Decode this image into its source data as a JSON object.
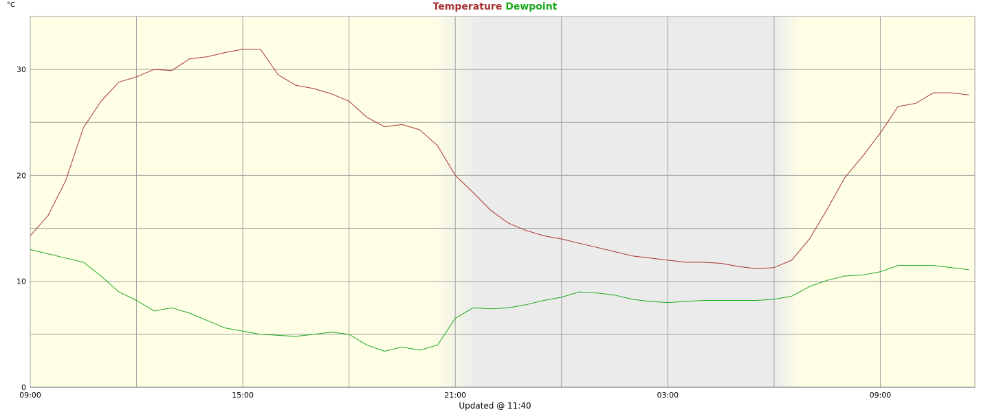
{
  "chart_data": {
    "type": "line",
    "title": "",
    "ylabel": "°C",
    "footer": "Updated @ 11:40",
    "ylim": [
      0,
      35
    ],
    "yticks": [
      0,
      10,
      20,
      30
    ],
    "x_range_hours": [
      0,
      26.67
    ],
    "x_tick_labels": [
      "09:00",
      "15:00",
      "21:00",
      "03:00",
      "09:00"
    ],
    "x_tick_hours": [
      0,
      6,
      12,
      18,
      24
    ],
    "grid": true,
    "legend": "top-center",
    "night_shading": {
      "start_hour": 11.3,
      "full_start_hour": 12.6,
      "full_end_hour": 21.0,
      "end_hour": 21.8
    },
    "colors": {
      "day": "#ffffe6",
      "night": "#ebebeb",
      "grid": "#a0a0a0",
      "temperature": "#a83232",
      "dewpoint": "#1ba81b"
    },
    "series": [
      {
        "name": "Temperature",
        "color": "#a83232",
        "x": [
          0,
          0.5,
          1.0,
          1.5,
          2.0,
          2.5,
          3.0,
          3.5,
          4.0,
          4.5,
          5.0,
          5.5,
          6.0,
          6.5,
          7.0,
          7.5,
          8.0,
          8.5,
          9.0,
          9.5,
          10.0,
          10.5,
          11.0,
          11.5,
          12.0,
          12.5,
          13.0,
          13.5,
          14.0,
          14.5,
          15.0,
          15.5,
          16.0,
          16.5,
          17.0,
          17.5,
          18.0,
          18.5,
          19.0,
          19.5,
          20.0,
          20.5,
          21.0,
          21.5,
          22.0,
          22.5,
          23.0,
          23.5,
          24.0,
          24.5,
          25.0,
          25.5,
          26.0,
          26.5
        ],
        "values": [
          14.3,
          16.2,
          19.5,
          24.5,
          27.0,
          28.8,
          29.3,
          30.0,
          29.9,
          31.0,
          31.2,
          31.6,
          31.9,
          31.9,
          29.5,
          28.5,
          28.2,
          27.7,
          27.0,
          25.5,
          24.6,
          24.8,
          24.3,
          22.8,
          20.0,
          18.4,
          16.7,
          15.5,
          14.8,
          14.3,
          14.0,
          13.6,
          13.2,
          12.8,
          12.4,
          12.2,
          12.0,
          11.8,
          11.8,
          11.7,
          11.4,
          11.2,
          11.3,
          12.0,
          14.0,
          16.8,
          19.8,
          21.8,
          24.0,
          26.5,
          26.8,
          27.8,
          27.8,
          27.6
        ]
      },
      {
        "name": "Dewpoint",
        "color": "#1ba81b",
        "x": [
          0,
          0.5,
          1.0,
          1.5,
          2.0,
          2.5,
          3.0,
          3.5,
          4.0,
          4.5,
          5.0,
          5.5,
          6.0,
          6.5,
          7.0,
          7.5,
          8.0,
          8.5,
          9.0,
          9.5,
          10.0,
          10.5,
          11.0,
          11.5,
          12.0,
          12.5,
          13.0,
          13.5,
          14.0,
          14.5,
          15.0,
          15.5,
          16.0,
          16.5,
          17.0,
          17.5,
          18.0,
          18.5,
          19.0,
          19.5,
          20.0,
          20.5,
          21.0,
          21.5,
          22.0,
          22.5,
          23.0,
          23.5,
          24.0,
          24.5,
          25.0,
          25.5,
          26.0,
          26.5
        ],
        "values": [
          13.0,
          12.6,
          12.2,
          11.8,
          10.5,
          9.0,
          8.2,
          7.2,
          7.5,
          7.0,
          6.3,
          5.6,
          5.3,
          5.0,
          4.9,
          4.8,
          5.0,
          5.2,
          5.0,
          4.0,
          3.4,
          3.8,
          3.5,
          4.0,
          6.5,
          7.5,
          7.4,
          7.5,
          7.8,
          8.2,
          8.5,
          9.0,
          8.9,
          8.7,
          8.3,
          8.1,
          8.0,
          8.1,
          8.2,
          8.2,
          8.2,
          8.2,
          8.3,
          8.6,
          9.5,
          10.1,
          10.5,
          10.6,
          10.9,
          11.5,
          11.5,
          11.5,
          11.3,
          11.1
        ]
      }
    ]
  }
}
